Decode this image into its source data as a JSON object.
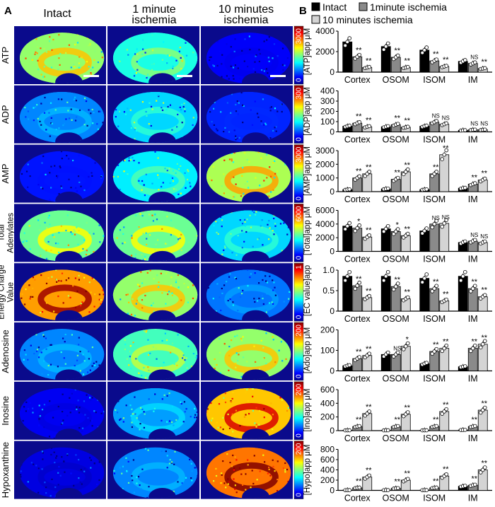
{
  "panel_labels": {
    "a": "A",
    "b": "B"
  },
  "columns": {
    "intact": "Intact",
    "one_min_l1": "1 minute",
    "one_min_l2": "ischemia",
    "ten_min_l1": "10 minutes",
    "ten_min_l2": "ischemia"
  },
  "rows": [
    {
      "label_lines": [
        "ATP"
      ],
      "scale": "3000",
      "zero": "0",
      "intensity": [
        0.55,
        0.4,
        0.05
      ]
    },
    {
      "label_lines": [
        "ADP"
      ],
      "scale": "300",
      "zero": "0",
      "intensity": [
        0.22,
        0.32,
        0.1
      ]
    },
    {
      "label_lines": [
        "AMP"
      ],
      "scale": "3000",
      "zero": "0",
      "intensity": [
        0.08,
        0.35,
        0.58
      ]
    },
    {
      "label_lines": [
        "Total",
        "Adenylates"
      ],
      "scale": "6000",
      "zero": "0",
      "intensity": [
        0.5,
        0.5,
        0.32
      ]
    },
    {
      "label_lines": [
        "Energy Charge",
        "Value"
      ],
      "scale": "1",
      "zero": "0",
      "intensity": [
        0.8,
        0.55,
        0.2
      ]
    },
    {
      "label_lines": [
        "Adenosine"
      ],
      "scale": "200",
      "zero": "0",
      "intensity": [
        0.22,
        0.45,
        0.55
      ]
    },
    {
      "label_lines": [
        "Inosine"
      ],
      "scale": "200",
      "zero": "0",
      "intensity": [
        0.04,
        0.25,
        0.75
      ]
    },
    {
      "label_lines": [
        "Hypoxanthine"
      ],
      "scale": "200",
      "zero": "0",
      "intensity": [
        0.02,
        0.22,
        0.85
      ]
    }
  ],
  "legend": {
    "intact": "Intact",
    "one_min": "1minute ischemia",
    "ten_min": "10 minutes ischemia"
  },
  "colors": {
    "intact": "#000000",
    "one_min": "#8a8a8a",
    "ten_min": "#d4d4d4",
    "map_background": "#0a0a8c"
  },
  "chart_data": [
    {
      "type": "bar",
      "ylabel": "[ATP]app μM",
      "ylim": [
        0,
        4000
      ],
      "yticks": [
        "0",
        "2000",
        "4000"
      ],
      "categories": [
        "Cortex",
        "OSOM",
        "ISOM",
        "IM"
      ],
      "series": [
        {
          "name": "Intact",
          "values": [
            2950,
            2500,
            2150,
            1050
          ]
        },
        {
          "name": "1minute ischemia",
          "values": [
            1500,
            1450,
            1100,
            850
          ]
        },
        {
          "name": "10 minutes ischemia",
          "values": [
            450,
            450,
            550,
            350
          ]
        }
      ],
      "annotations": [
        [
          "",
          "**",
          "**"
        ],
        [
          "",
          "**",
          "**"
        ],
        [
          "",
          "**",
          "**"
        ],
        [
          "",
          "NS",
          "**"
        ]
      ]
    },
    {
      "type": "bar",
      "ylabel": "[ADP]app μM",
      "ylim": [
        0,
        400
      ],
      "yticks": [
        "0",
        "100",
        "200",
        "300",
        "400"
      ],
      "categories": [
        "Cortex",
        "OSOM",
        "ISOM",
        "IM"
      ],
      "series": [
        {
          "name": "Intact",
          "values": [
            55,
            50,
            55,
            15
          ]
        },
        {
          "name": "1minute ischemia",
          "values": [
            85,
            70,
            95,
            20
          ]
        },
        {
          "name": "10 minutes ischemia",
          "values": [
            50,
            45,
            75,
            20
          ]
        }
      ],
      "annotations": [
        [
          "",
          "**",
          "**"
        ],
        [
          "",
          "**",
          "**"
        ],
        [
          "",
          "NS",
          "NS"
        ],
        [
          "",
          "NS",
          "NS"
        ]
      ]
    },
    {
      "type": "bar",
      "ylabel": "[AMP]app μM",
      "ylim": [
        0,
        3000
      ],
      "yticks": [
        "0",
        "1000",
        "2000",
        "3000"
      ],
      "categories": [
        "Cortex",
        "OSOM",
        "ISOM",
        "IM"
      ],
      "series": [
        {
          "name": "Intact",
          "values": [
            150,
            200,
            150,
            250
          ]
        },
        {
          "name": "1minute ischemia",
          "values": [
            1000,
            900,
            1300,
            550
          ]
        },
        {
          "name": "10 minutes ischemia",
          "values": [
            1300,
            1450,
            2700,
            850
          ]
        }
      ],
      "annotations": [
        [
          "",
          "**",
          "**"
        ],
        [
          "",
          "**",
          "**"
        ],
        [
          "",
          "**",
          "**"
        ],
        [
          "",
          "**",
          "**"
        ]
      ]
    },
    {
      "type": "bar",
      "ylabel": "[Total]app μM",
      "ylim": [
        0,
        6000
      ],
      "yticks": [
        "0",
        "2000",
        "4000",
        "6000"
      ],
      "categories": [
        "Cortex",
        "OSOM",
        "ISOM",
        "IM"
      ],
      "series": [
        {
          "name": "Intact",
          "values": [
            3700,
            3300,
            3000,
            1300
          ]
        },
        {
          "name": "1minute ischemia",
          "values": [
            3400,
            2900,
            4000,
            1500
          ]
        },
        {
          "name": "10 minutes ischemia",
          "values": [
            2100,
            2300,
            4100,
            1300
          ]
        }
      ],
      "annotations": [
        [
          "",
          "*",
          "**"
        ],
        [
          "",
          "*",
          "**"
        ],
        [
          "",
          "NS",
          "NS"
        ],
        [
          "",
          "NS",
          "NS"
        ]
      ]
    },
    {
      "type": "bar",
      "ylabel": "[EC value]app",
      "ylim": [
        0,
        1.0
      ],
      "yticks": [
        "0",
        "0.5",
        "1.0"
      ],
      "categories": [
        "Cortex",
        "OSOM",
        "ISOM",
        "IM"
      ],
      "series": [
        {
          "name": "Intact",
          "values": [
            0.85,
            0.85,
            0.8,
            0.85
          ]
        },
        {
          "name": "1minute ischemia",
          "values": [
            0.62,
            0.6,
            0.55,
            0.55
          ]
        },
        {
          "name": "10 minutes ischemia",
          "values": [
            0.33,
            0.3,
            0.25,
            0.35
          ]
        }
      ],
      "annotations": [
        [
          "",
          "**",
          "**"
        ],
        [
          "",
          "**",
          "**"
        ],
        [
          "",
          "**",
          "**"
        ],
        [
          "",
          "**",
          "**"
        ]
      ]
    },
    {
      "type": "bar",
      "ylabel": "[Ado]app μM",
      "ylim": [
        0,
        200
      ],
      "yticks": [
        "0",
        "100",
        "200"
      ],
      "categories": [
        "Cortex",
        "OSOM",
        "ISOM",
        "IM"
      ],
      "series": [
        {
          "name": "Intact",
          "values": [
            25,
            80,
            35,
            20
          ]
        },
        {
          "name": "1minute ischemia",
          "values": [
            60,
            80,
            95,
            110
          ]
        },
        {
          "name": "10 minutes ischemia",
          "values": [
            75,
            120,
            110,
            130
          ]
        }
      ],
      "annotations": [
        [
          "",
          "**",
          "**"
        ],
        [
          "",
          "NS",
          "*"
        ],
        [
          "",
          "**",
          "**"
        ],
        [
          "",
          "**",
          "**"
        ]
      ]
    },
    {
      "type": "bar",
      "ylabel": "[Ino]app μM",
      "ylim": [
        0,
        600
      ],
      "yticks": [
        "0",
        "200",
        "400",
        "600"
      ],
      "categories": [
        "Cortex",
        "OSOM",
        "ISOM",
        "IM"
      ],
      "series": [
        {
          "name": "Intact",
          "values": [
            5,
            5,
            5,
            10
          ]
        },
        {
          "name": "1minute ischemia",
          "values": [
            60,
            60,
            60,
            60
          ]
        },
        {
          "name": "10 minutes ischemia",
          "values": [
            250,
            240,
            280,
            300
          ]
        }
      ],
      "annotations": [
        [
          "",
          "**",
          "**"
        ],
        [
          "",
          "**",
          "**"
        ],
        [
          "",
          "**",
          "**"
        ],
        [
          "",
          "**",
          "**"
        ]
      ]
    },
    {
      "type": "bar",
      "ylabel": "[Hypo]app μM",
      "ylim": [
        0,
        800
      ],
      "yticks": [
        "0",
        "200",
        "400",
        "600",
        "800"
      ],
      "categories": [
        "Cortex",
        "OSOM",
        "ISOM",
        "IM"
      ],
      "series": [
        {
          "name": "Intact",
          "values": [
            5,
            5,
            5,
            80
          ]
        },
        {
          "name": "1minute ischemia",
          "values": [
            50,
            40,
            50,
            100
          ]
        },
        {
          "name": "10 minutes ischemia",
          "values": [
            260,
            200,
            280,
            400
          ]
        }
      ],
      "annotations": [
        [
          "",
          "**",
          "**"
        ],
        [
          "",
          "**",
          "**"
        ],
        [
          "",
          "**",
          "**"
        ],
        [
          "",
          "**",
          "**"
        ]
      ]
    }
  ]
}
